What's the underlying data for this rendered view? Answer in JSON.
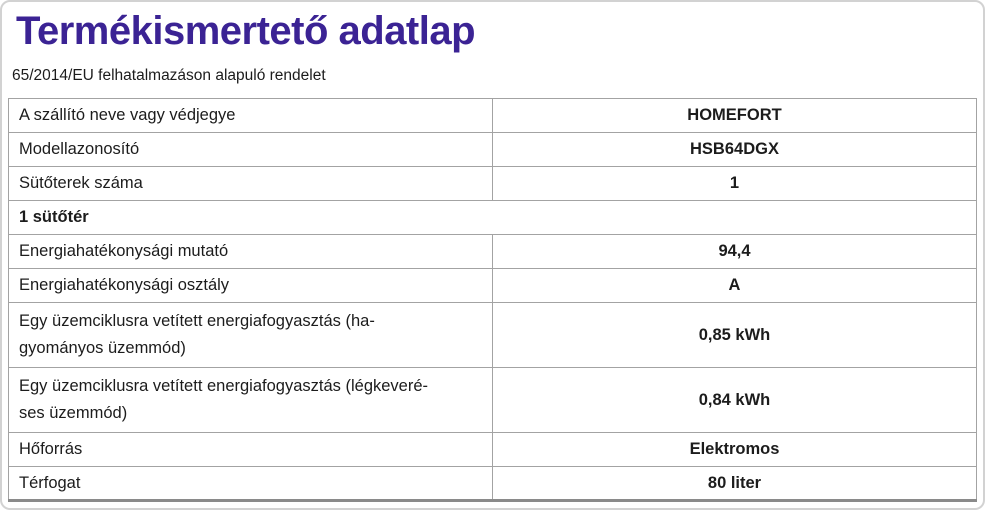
{
  "page": {
    "title": "Termékismertető adatlap",
    "subtitle": "65/2014/EU felhatalmazáson alapuló rendelet",
    "title_color": "#3b2394",
    "text_color": "#1c1c1c",
    "border_color": "#a3a3a3"
  },
  "table": {
    "rows": [
      {
        "type": "data",
        "label": "A szállító neve vagy védjegye",
        "value": "HOMEFORT",
        "two_line": false
      },
      {
        "type": "data",
        "label": "Modellazonosító",
        "value": "HSB64DGX",
        "two_line": false
      },
      {
        "type": "data",
        "label": "Sütőterek száma",
        "value": "1",
        "two_line": false
      },
      {
        "type": "section",
        "label": "1 sütőtér"
      },
      {
        "type": "data",
        "label": "Energiahatékonysági mutató",
        "value": "94,4",
        "two_line": false
      },
      {
        "type": "data",
        "label": "Energiahatékonysági osztály",
        "value": "A",
        "two_line": false
      },
      {
        "type": "data",
        "label": "Egy üzemciklusra vetített energiafogyasztás (ha-\ngyományos üzemmód)",
        "value": "0,85 kWh",
        "two_line": true
      },
      {
        "type": "data",
        "label": "Egy üzemciklusra vetített energiafogyasztás (légkeveré-\nses üzemmód)",
        "value": "0,84 kWh",
        "two_line": true
      },
      {
        "type": "data",
        "label": "Hőforrás",
        "value": "Elektromos",
        "two_line": false
      },
      {
        "type": "data",
        "label": "Térfogat",
        "value": "80 liter",
        "two_line": false
      }
    ]
  }
}
